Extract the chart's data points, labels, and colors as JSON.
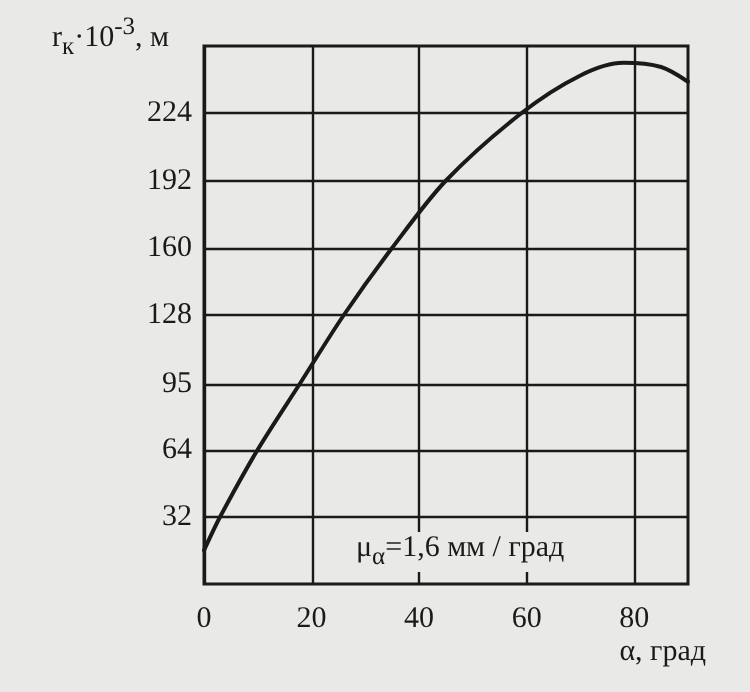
{
  "chart_data": {
    "type": "line",
    "xlabel": "α, град",
    "ylabel": "r$_{к}$·10$^{-3}$, м",
    "annotations": [
      "μ$_{α}$=1,6 мм / град"
    ],
    "x": [
      0,
      3,
      10,
      18,
      26,
      35,
      45,
      59,
      70,
      78,
      85,
      90
    ],
    "series": [
      {
        "color": "#1a1a1a",
        "values": [
          16,
          32,
          64,
          96,
          128,
          160,
          192,
          224,
          242,
          248,
          246,
          239
        ]
      }
    ],
    "xlim": [
      0,
      90
    ],
    "xticks": [
      0,
      20,
      40,
      60,
      80
    ],
    "ylim": [
      0,
      256
    ],
    "yticks": [
      32,
      64,
      95,
      128,
      160,
      192,
      224
    ],
    "grid": true,
    "marker": "none",
    "line_style": "solid"
  }
}
